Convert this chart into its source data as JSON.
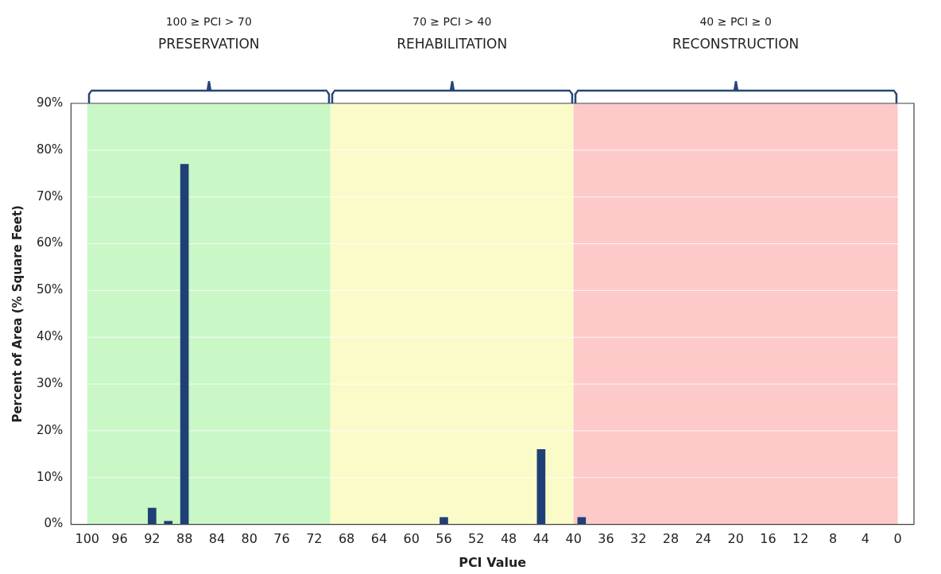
{
  "chart_data": {
    "type": "bar",
    "xlabel": "PCI Value",
    "ylabel": "Percent of Area (% Square Feet)",
    "x": [
      92,
      90,
      88,
      56,
      44,
      39
    ],
    "values": [
      3.5,
      0.7,
      77,
      1.5,
      16,
      1.5
    ],
    "color": "#1f3f77",
    "xlim": [
      100,
      0
    ],
    "xticks": [
      100,
      96,
      92,
      88,
      84,
      80,
      76,
      72,
      68,
      64,
      60,
      56,
      52,
      48,
      44,
      40,
      36,
      32,
      28,
      24,
      20,
      16,
      12,
      8,
      4,
      0
    ],
    "ylim": [
      0,
      90
    ],
    "yticks": [
      {
        "value": 0,
        "label": "0%"
      },
      {
        "value": 10,
        "label": "10%"
      },
      {
        "value": 20,
        "label": "20%"
      },
      {
        "value": 30,
        "label": "30%"
      },
      {
        "value": 40,
        "label": "40%"
      },
      {
        "value": 50,
        "label": "50%"
      },
      {
        "value": 60,
        "label": "60%"
      },
      {
        "value": 70,
        "label": "70%"
      },
      {
        "value": 80,
        "label": "80%"
      },
      {
        "value": 90,
        "label": "90%"
      }
    ],
    "grid": "y",
    "bands": [
      {
        "axis": "x",
        "from": 100,
        "to": 70,
        "color": "#c9f7c6"
      },
      {
        "axis": "x",
        "from": 70,
        "to": 40,
        "color": "#fbfbc9"
      },
      {
        "axis": "x",
        "from": 40,
        "to": 0,
        "color": "#fdc9c9"
      }
    ],
    "annotations": [
      "100 ≥ PCI > 70\nPRESERVATION",
      "70 ≥ PCI > 40\nREHABILITATION",
      "40 ≥ PCI ≥ 0\nRECONSTRUCTION"
    ]
  }
}
